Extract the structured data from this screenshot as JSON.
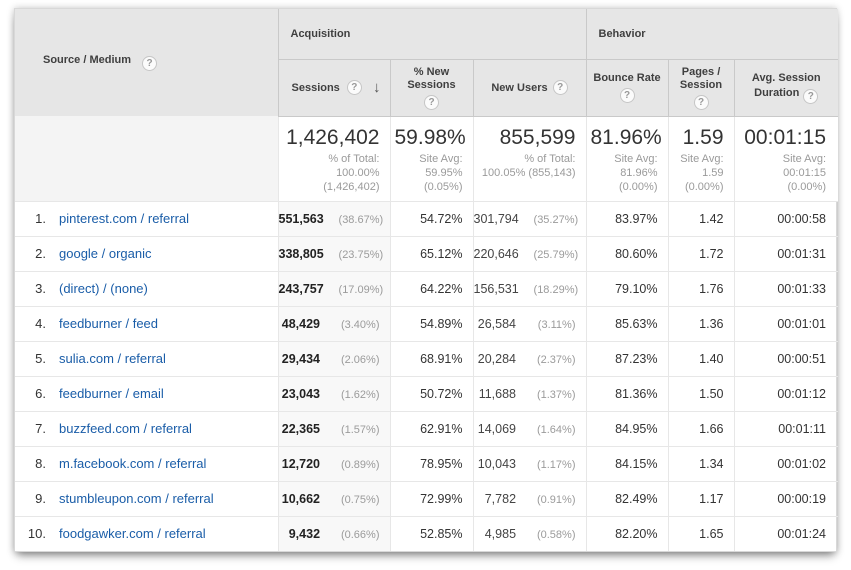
{
  "icons": {
    "help": "?",
    "sort_desc": "↓"
  },
  "header": {
    "row_dimension": "Source / Medium",
    "group_acquisition": "Acquisition",
    "group_behavior": "Behavior",
    "col_sessions": "Sessions",
    "col_new_sessions": "% New Sessions",
    "col_new_users": "New Users",
    "col_bounce_rate": "Bounce Rate",
    "col_pages_session": "Pages / Session",
    "col_avg_duration": "Avg. Session Duration"
  },
  "summary": {
    "sessions": {
      "value": "1,426,402",
      "lines": {
        "l1": "% of Total:",
        "l2": "100.00%",
        "l3": "(1,426,402)"
      }
    },
    "new_sessions": {
      "value": "59.98%",
      "lines": {
        "l1": "Site Avg:",
        "l2": "59.95%",
        "l3": "(0.05%)"
      }
    },
    "new_users": {
      "value": "855,599",
      "lines": {
        "l1": "% of Total:",
        "l2": "100.05% (855,143)",
        "l3": ""
      }
    },
    "bounce": {
      "value": "81.96%",
      "lines": {
        "l1": "Site Avg:",
        "l2": "81.96%",
        "l3": "(0.00%)"
      }
    },
    "pages": {
      "value": "1.59",
      "lines": {
        "l1": "Site Avg:",
        "l2": "1.59",
        "l3": "(0.00%)"
      }
    },
    "duration": {
      "value": "00:01:15",
      "lines": {
        "l1": "Site Avg:",
        "l2": "00:01:15",
        "l3": "(0.00%)"
      }
    }
  },
  "rows": [
    {
      "rank": "1.",
      "source": "pinterest.com / referral",
      "sessions": "551,563",
      "sessions_pct": "(38.67%)",
      "new_sessions": "54.72%",
      "new_users": "301,794",
      "new_users_pct": "(35.27%)",
      "bounce": "83.97%",
      "pages": "1.42",
      "duration": "00:00:58"
    },
    {
      "rank": "2.",
      "source": "google / organic",
      "sessions": "338,805",
      "sessions_pct": "(23.75%)",
      "new_sessions": "65.12%",
      "new_users": "220,646",
      "new_users_pct": "(25.79%)",
      "bounce": "80.60%",
      "pages": "1.72",
      "duration": "00:01:31"
    },
    {
      "rank": "3.",
      "source": "(direct) / (none)",
      "sessions": "243,757",
      "sessions_pct": "(17.09%)",
      "new_sessions": "64.22%",
      "new_users": "156,531",
      "new_users_pct": "(18.29%)",
      "bounce": "79.10%",
      "pages": "1.76",
      "duration": "00:01:33"
    },
    {
      "rank": "4.",
      "source": "feedburner / feed",
      "sessions": "48,429",
      "sessions_pct": "(3.40%)",
      "new_sessions": "54.89%",
      "new_users": "26,584",
      "new_users_pct": "(3.11%)",
      "bounce": "85.63%",
      "pages": "1.36",
      "duration": "00:01:01"
    },
    {
      "rank": "5.",
      "source": "sulia.com / referral",
      "sessions": "29,434",
      "sessions_pct": "(2.06%)",
      "new_sessions": "68.91%",
      "new_users": "20,284",
      "new_users_pct": "(2.37%)",
      "bounce": "87.23%",
      "pages": "1.40",
      "duration": "00:00:51"
    },
    {
      "rank": "6.",
      "source": "feedburner / email",
      "sessions": "23,043",
      "sessions_pct": "(1.62%)",
      "new_sessions": "50.72%",
      "new_users": "11,688",
      "new_users_pct": "(1.37%)",
      "bounce": "81.36%",
      "pages": "1.50",
      "duration": "00:01:12"
    },
    {
      "rank": "7.",
      "source": "buzzfeed.com / referral",
      "sessions": "22,365",
      "sessions_pct": "(1.57%)",
      "new_sessions": "62.91%",
      "new_users": "14,069",
      "new_users_pct": "(1.64%)",
      "bounce": "84.95%",
      "pages": "1.66",
      "duration": "00:01:11"
    },
    {
      "rank": "8.",
      "source": "m.facebook.com / referral",
      "sessions": "12,720",
      "sessions_pct": "(0.89%)",
      "new_sessions": "78.95%",
      "new_users": "10,043",
      "new_users_pct": "(1.17%)",
      "bounce": "84.15%",
      "pages": "1.34",
      "duration": "00:01:02"
    },
    {
      "rank": "9.",
      "source": "stumbleupon.com / referral",
      "sessions": "10,662",
      "sessions_pct": "(0.75%)",
      "new_sessions": "72.99%",
      "new_users": "7,782",
      "new_users_pct": "(0.91%)",
      "bounce": "82.49%",
      "pages": "1.17",
      "duration": "00:00:19"
    },
    {
      "rank": "10.",
      "source": "foodgawker.com / referral",
      "sessions": "9,432",
      "sessions_pct": "(0.66%)",
      "new_sessions": "52.85%",
      "new_users": "4,985",
      "new_users_pct": "(0.58%)",
      "bounce": "82.20%",
      "pages": "1.65",
      "duration": "00:01:24"
    }
  ]
}
